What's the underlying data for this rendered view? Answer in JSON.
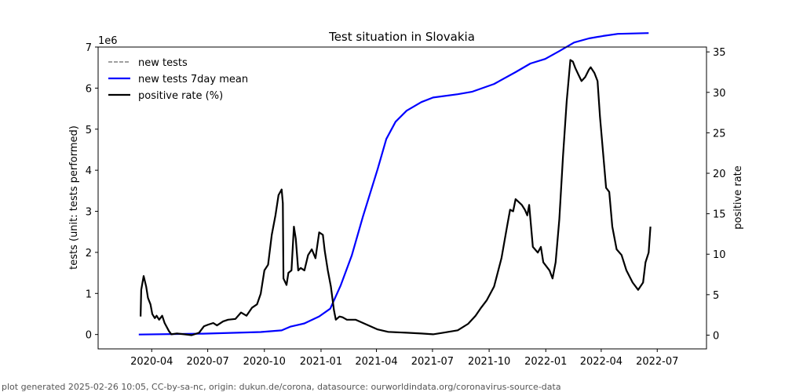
{
  "chart_data": {
    "type": "line",
    "title": "Test situation in Slovakia",
    "x_unit": "days since 2020-01-01",
    "x_origin": "2020-01-01",
    "xlim": [
      4,
      992
    ],
    "ylabel_left": "tests (unit: tests performed)",
    "ylabel_right": "positive rate",
    "left_scale_label": "1e6",
    "ylim_left": [
      -0.35,
      7.0
    ],
    "ylim_right": [
      -1.7,
      35.6
    ],
    "legend_position": "top-left",
    "x_ticks": [
      {
        "day": 91,
        "label": "2020-04"
      },
      {
        "day": 182,
        "label": "2020-07"
      },
      {
        "day": 274,
        "label": "2020-10"
      },
      {
        "day": 366,
        "label": "2021-01"
      },
      {
        "day": 456,
        "label": "2021-04"
      },
      {
        "day": 547,
        "label": "2021-07"
      },
      {
        "day": 639,
        "label": "2021-10"
      },
      {
        "day": 731,
        "label": "2022-01"
      },
      {
        "day": 821,
        "label": "2022-04"
      },
      {
        "day": 912,
        "label": "2022-07"
      }
    ],
    "y_ticks_left": [
      {
        "v": 0,
        "label": "0"
      },
      {
        "v": 1,
        "label": "1"
      },
      {
        "v": 2,
        "label": "2"
      },
      {
        "v": 3,
        "label": "3"
      },
      {
        "v": 4,
        "label": "4"
      },
      {
        "v": 5,
        "label": "5"
      },
      {
        "v": 6,
        "label": "6"
      },
      {
        "v": 7,
        "label": "7"
      }
    ],
    "y_ticks_right": [
      {
        "v": 0,
        "label": "0"
      },
      {
        "v": 5,
        "label": "5"
      },
      {
        "v": 10,
        "label": "10"
      },
      {
        "v": 15,
        "label": "15"
      },
      {
        "v": 20,
        "label": "20"
      },
      {
        "v": 25,
        "label": "25"
      },
      {
        "v": 30,
        "label": "30"
      },
      {
        "v": 35,
        "label": "35"
      }
    ],
    "series": [
      {
        "name": "new tests",
        "axis": "left",
        "color": "#808080",
        "dash": true,
        "points": []
      },
      {
        "name": "new tests 7day mean",
        "axis": "left",
        "color": "#0000ff",
        "points": [
          [
            70,
            0
          ],
          [
            174,
            0.02
          ],
          [
            268,
            0.06
          ],
          [
            302,
            0.1
          ],
          [
            316,
            0.19
          ],
          [
            339,
            0.27
          ],
          [
            363,
            0.44
          ],
          [
            381,
            0.63
          ],
          [
            398,
            1.2
          ],
          [
            416,
            1.93
          ],
          [
            434,
            2.87
          ],
          [
            458,
            4.03
          ],
          [
            472,
            4.76
          ],
          [
            487,
            5.18
          ],
          [
            505,
            5.45
          ],
          [
            529,
            5.66
          ],
          [
            548,
            5.77
          ],
          [
            588,
            5.85
          ],
          [
            611,
            5.91
          ],
          [
            647,
            6.1
          ],
          [
            682,
            6.39
          ],
          [
            706,
            6.6
          ],
          [
            730,
            6.71
          ],
          [
            753,
            6.9
          ],
          [
            777,
            7.11
          ],
          [
            801,
            7.21
          ],
          [
            824,
            7.27
          ],
          [
            848,
            7.32
          ],
          [
            898,
            7.34
          ]
        ]
      },
      {
        "name": "positive rate (%)",
        "axis": "right",
        "color": "#000000",
        "points": [
          [
            73,
            2.3
          ],
          [
            74,
            5.6
          ],
          [
            78,
            7.3
          ],
          [
            82,
            6.0
          ],
          [
            85,
            4.6
          ],
          [
            89,
            3.8
          ],
          [
            92,
            2.6
          ],
          [
            96,
            2.1
          ],
          [
            99,
            2.4
          ],
          [
            103,
            1.9
          ],
          [
            108,
            2.4
          ],
          [
            112,
            1.5
          ],
          [
            119,
            0.5
          ],
          [
            123,
            0.1
          ],
          [
            132,
            0.2
          ],
          [
            144,
            0.1
          ],
          [
            156,
            0.0
          ],
          [
            168,
            0.3
          ],
          [
            176,
            1.1
          ],
          [
            183,
            1.3
          ],
          [
            191,
            1.5
          ],
          [
            197,
            1.2
          ],
          [
            207,
            1.7
          ],
          [
            215,
            1.9
          ],
          [
            227,
            2.0
          ],
          [
            236,
            2.8
          ],
          [
            245,
            2.4
          ],
          [
            254,
            3.4
          ],
          [
            262,
            3.8
          ],
          [
            268,
            5.1
          ],
          [
            274,
            8.0
          ],
          [
            280,
            8.7
          ],
          [
            286,
            12.4
          ],
          [
            292,
            14.8
          ],
          [
            297,
            17.3
          ],
          [
            302,
            18.0
          ],
          [
            304,
            16.3
          ],
          [
            305,
            7.0
          ],
          [
            310,
            6.2
          ],
          [
            313,
            7.7
          ],
          [
            318,
            8.0
          ],
          [
            322,
            13.4
          ],
          [
            325,
            11.9
          ],
          [
            329,
            8.0
          ],
          [
            333,
            8.3
          ],
          [
            339,
            8.0
          ],
          [
            345,
            9.9
          ],
          [
            351,
            10.6
          ],
          [
            357,
            9.5
          ],
          [
            363,
            12.7
          ],
          [
            369,
            12.4
          ],
          [
            372,
            10.4
          ],
          [
            377,
            8.0
          ],
          [
            382,
            6.0
          ],
          [
            387,
            3.1
          ],
          [
            390,
            1.9
          ],
          [
            396,
            2.3
          ],
          [
            401,
            2.2
          ],
          [
            408,
            1.9
          ],
          [
            422,
            1.9
          ],
          [
            440,
            1.3
          ],
          [
            458,
            0.7
          ],
          [
            475,
            0.4
          ],
          [
            505,
            0.3
          ],
          [
            529,
            0.2
          ],
          [
            548,
            0.1
          ],
          [
            564,
            0.3
          ],
          [
            588,
            0.6
          ],
          [
            605,
            1.4
          ],
          [
            617,
            2.4
          ],
          [
            626,
            3.4
          ],
          [
            635,
            4.3
          ],
          [
            647,
            6.0
          ],
          [
            659,
            9.5
          ],
          [
            668,
            13.4
          ],
          [
            673,
            15.5
          ],
          [
            678,
            15.3
          ],
          [
            682,
            16.8
          ],
          [
            692,
            16.1
          ],
          [
            697,
            15.5
          ],
          [
            701,
            14.8
          ],
          [
            704,
            16.1
          ],
          [
            710,
            10.9
          ],
          [
            718,
            10.2
          ],
          [
            723,
            10.9
          ],
          [
            727,
            9.0
          ],
          [
            737,
            8.0
          ],
          [
            742,
            7.0
          ],
          [
            747,
            9.0
          ],
          [
            753,
            14.3
          ],
          [
            759,
            22.1
          ],
          [
            765,
            28.9
          ],
          [
            771,
            34.0
          ],
          [
            775,
            33.8
          ],
          [
            779,
            33.0
          ],
          [
            784,
            32.2
          ],
          [
            789,
            31.4
          ],
          [
            795,
            31.9
          ],
          [
            801,
            32.8
          ],
          [
            804,
            33.1
          ],
          [
            810,
            32.4
          ],
          [
            815,
            31.4
          ],
          [
            819,
            27.0
          ],
          [
            824,
            22.6
          ],
          [
            829,
            18.2
          ],
          [
            834,
            17.7
          ],
          [
            839,
            13.4
          ],
          [
            846,
            10.6
          ],
          [
            854,
            9.9
          ],
          [
            862,
            8.0
          ],
          [
            872,
            6.5
          ],
          [
            881,
            5.6
          ],
          [
            889,
            6.5
          ],
          [
            893,
            9.0
          ],
          [
            898,
            10.2
          ],
          [
            901,
            13.4
          ]
        ]
      }
    ]
  },
  "footer": "plot generated 2025-02-26 10:05, CC-by-sa-nc, origin: dukun.de/corona, datasource: ourworldindata.org/coronavirus-source-data"
}
